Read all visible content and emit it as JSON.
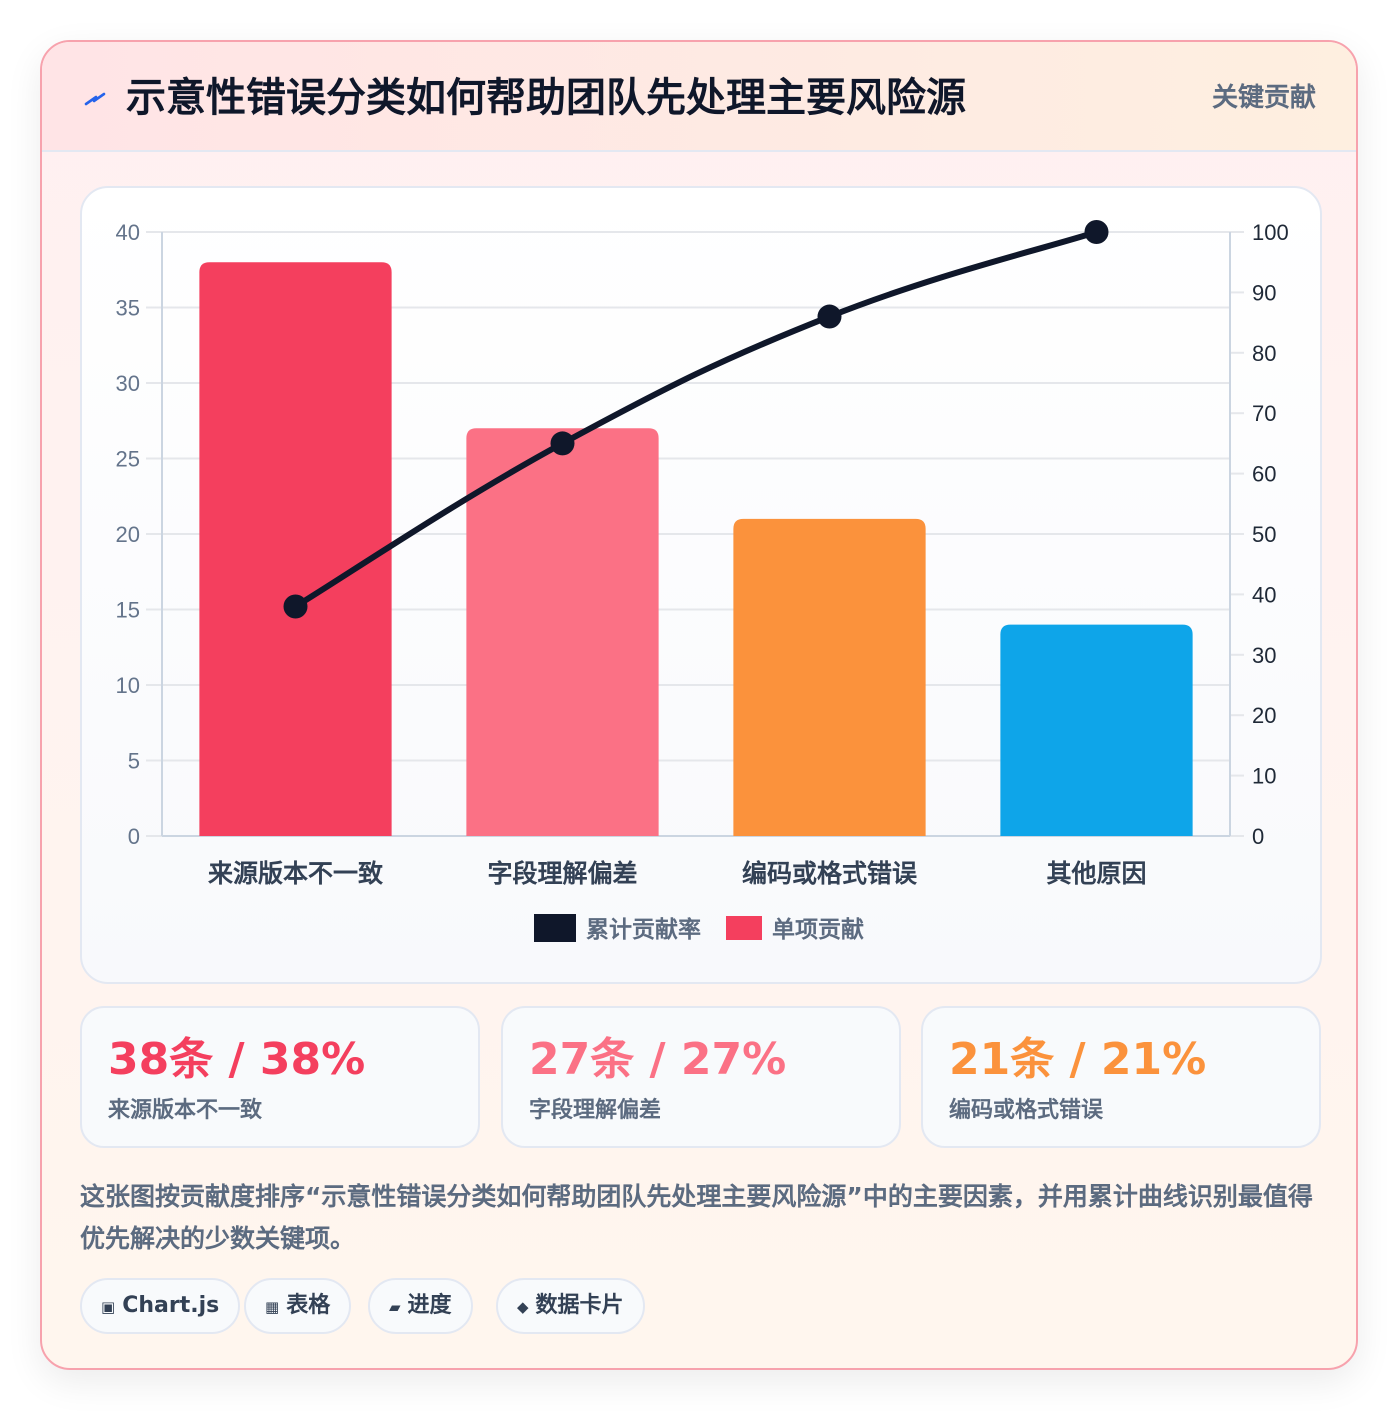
{
  "header": {
    "icon": "lightning-bolt-icon",
    "title": "示意性错误分类如何帮助团队先处理主要风险源",
    "badge": "关键贡献"
  },
  "colors": {
    "bars": [
      "#f43f5e",
      "#fb7185",
      "#fb923c",
      "#0ea5e9"
    ],
    "line": "#0f172a",
    "stat_values": [
      "#f43f5e",
      "#fb7185",
      "#fb923c"
    ]
  },
  "chart_data": {
    "type": "bar",
    "categories": [
      "来源版本不一致",
      "字段理解偏差",
      "编码或格式错误",
      "其他原因"
    ],
    "series": [
      {
        "name": "单项贡献",
        "type": "bar",
        "axis": "left",
        "values": [
          38,
          27,
          21,
          14
        ]
      },
      {
        "name": "累计贡献率",
        "type": "line",
        "axis": "right",
        "values": [
          38,
          65,
          86,
          100
        ]
      }
    ],
    "ylim_left": [
      0,
      40
    ],
    "yticks_left": [
      "0",
      "5",
      "10",
      "15",
      "20",
      "25",
      "30",
      "35",
      "40"
    ],
    "ylim_right": [
      0,
      100
    ],
    "yticks_right": [
      "0",
      "10",
      "20",
      "30",
      "40",
      "50",
      "60",
      "70",
      "80",
      "90",
      "100"
    ],
    "grid": true,
    "legend": [
      "累计贡献率",
      "单项贡献"
    ],
    "legend_position": "bottom"
  },
  "stats": [
    {
      "value": "38条 / 38%",
      "label": "来源版本不一致"
    },
    {
      "value": "27条 / 27%",
      "label": "字段理解偏差"
    },
    {
      "value": "21条 / 21%",
      "label": "编码或格式错误"
    }
  ],
  "description": "这张图按贡献度排序“示意性错误分类如何帮助团队先处理主要风险源”中的主要因素，并用累计曲线识别最值得优先解决的少数关键项。",
  "chips": [
    {
      "icon": "▣",
      "label": "Chart.js"
    },
    {
      "icon": "▦",
      "label": "表格"
    },
    {
      "icon": "▰",
      "label": "进度"
    },
    {
      "icon": "◆",
      "label": "数据卡片"
    }
  ]
}
